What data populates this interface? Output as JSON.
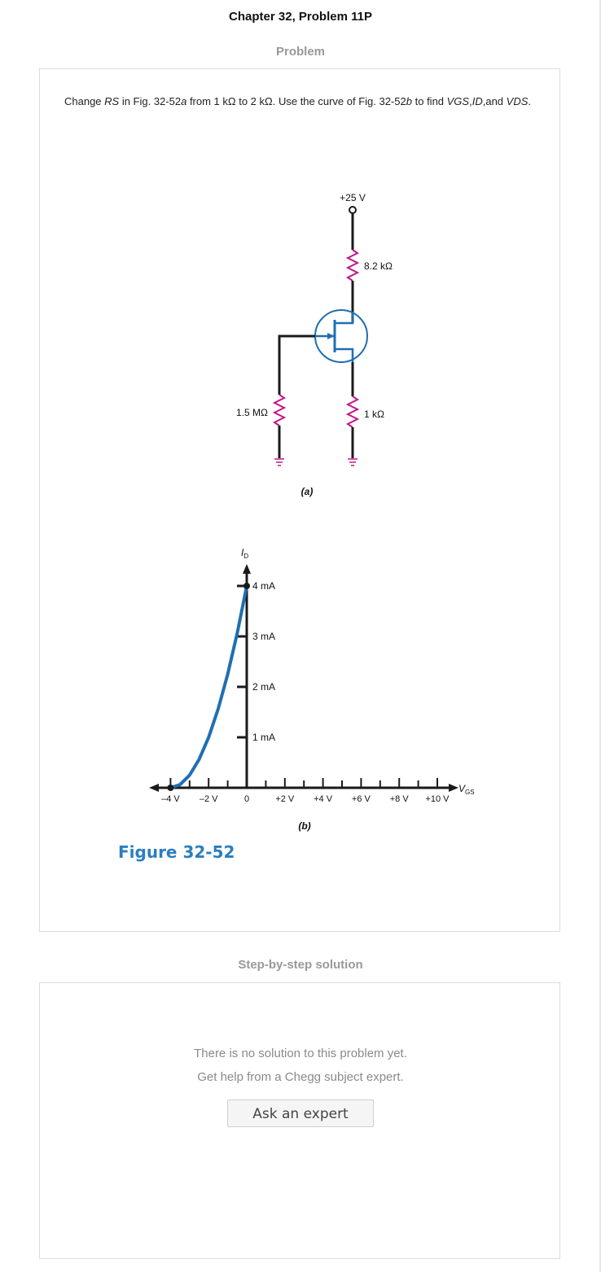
{
  "page": {
    "title": "Chapter 32, Problem 11P",
    "problem_heading": "Problem",
    "solution_heading": "Step-by-step solution"
  },
  "problem": {
    "parts": [
      {
        "t": "Change ",
        "i": false
      },
      {
        "t": "RS",
        "i": true
      },
      {
        "t": " in Fig. 32-52",
        "i": false
      },
      {
        "t": "a",
        "i": true
      },
      {
        "t": " from 1 kΩ to 2 kΩ. Use the curve of Fig. 32-52",
        "i": false
      },
      {
        "t": "b",
        "i": true
      },
      {
        "t": " to find ",
        "i": false
      },
      {
        "t": "VGS",
        "i": true
      },
      {
        "t": ",",
        "i": false
      },
      {
        "t": "ID",
        "i": true
      },
      {
        "t": ",and ",
        "i": false
      },
      {
        "t": "VDS",
        "i": true
      },
      {
        "t": ".",
        "i": false
      }
    ]
  },
  "circuit": {
    "supply_label": "+25 V",
    "rd_label": "8.2 kΩ",
    "rg_label": "1.5 MΩ",
    "rs_label": "1 kΩ",
    "caption": "(a)"
  },
  "chart_data": {
    "type": "line",
    "xlabel": "VGS",
    "ylabel": "ID",
    "x_tick_labels": [
      "–4 V",
      "–2 V",
      "0",
      "+2 V",
      "+4 V",
      "+6 V",
      "+8 V",
      "+10 V"
    ],
    "y_tick_labels": [
      "1 mA",
      "2 mA",
      "3 mA",
      "4 mA"
    ],
    "caption": "(b)",
    "xlim": [
      -5,
      11
    ],
    "ylim": [
      0,
      4.5
    ],
    "series": [
      {
        "color": "#1f6fb2",
        "x": [
          -4,
          -3.5,
          -3,
          -2.5,
          -2,
          -1.5,
          -1,
          -0.5,
          0
        ],
        "y": [
          0,
          0.0625,
          0.25,
          0.5625,
          1.0,
          1.5625,
          2.25,
          3.0625,
          4.0
        ]
      }
    ],
    "marked_points": [
      {
        "x": -4,
        "y": 0
      },
      {
        "x": 0,
        "y": 4
      }
    ]
  },
  "figure": {
    "caption": "Figure 32-52"
  },
  "solution": {
    "message_line1": "There is no solution to this problem yet.",
    "message_line2": "Get help from a Chegg subject expert.",
    "button_label": "Ask an expert"
  },
  "colors": {
    "wire": "#1a1a1a",
    "resistor": "#c2168a",
    "transistor": "#1f6fb2",
    "curve": "#1f6fb2",
    "figure_caption": "#2a7ec0",
    "axis_arrow": "#c2168a"
  }
}
